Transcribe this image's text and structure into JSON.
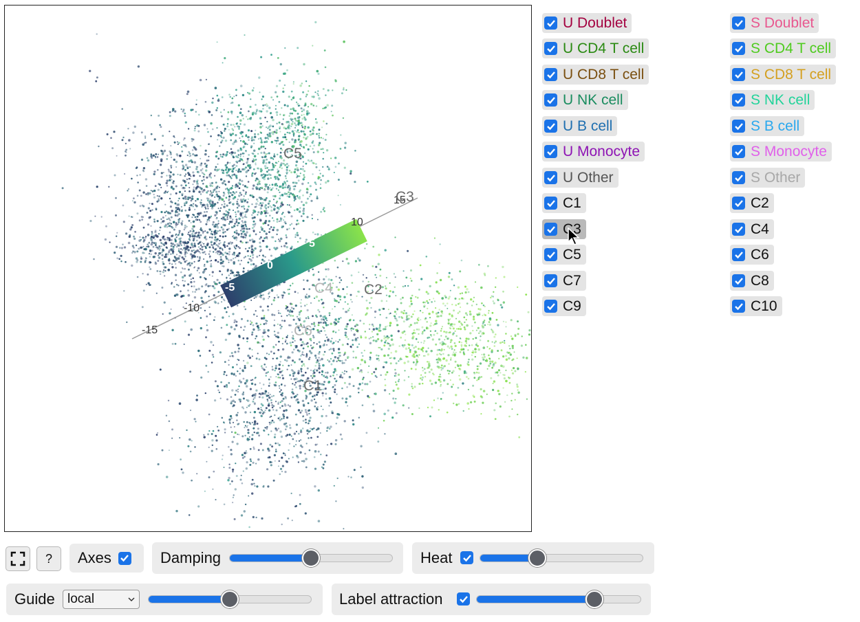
{
  "legend": {
    "left": [
      {
        "label": "U Doublet",
        "color": "#a3003f"
      },
      {
        "label": "U CD4 T cell",
        "color": "#2a8a12"
      },
      {
        "label": "U CD8 T cell",
        "color": "#7a4f10"
      },
      {
        "label": "U NK cell",
        "color": "#1a8c5f"
      },
      {
        "label": "U B cell",
        "color": "#1f6fb0"
      },
      {
        "label": "U Monocyte",
        "color": "#8e14b4"
      },
      {
        "label": "U Other",
        "color": "#555555"
      },
      {
        "label": "C1",
        "color": "#111111"
      },
      {
        "label": "C3",
        "color": "#111111"
      },
      {
        "label": "C5",
        "color": "#111111"
      },
      {
        "label": "C7",
        "color": "#111111"
      },
      {
        "label": "C9",
        "color": "#111111"
      }
    ],
    "right": [
      {
        "label": "S Doublet",
        "color": "#e8588f"
      },
      {
        "label": "S CD4 T cell",
        "color": "#4fcb1f"
      },
      {
        "label": "S CD8 T cell",
        "color": "#d4a020"
      },
      {
        "label": "S NK cell",
        "color": "#22d39a"
      },
      {
        "label": "S B cell",
        "color": "#2aa8ee"
      },
      {
        "label": "S Monocyte",
        "color": "#e060ea"
      },
      {
        "label": "S Other",
        "color": "#a8a8a8"
      },
      {
        "label": "C2",
        "color": "#111111"
      },
      {
        "label": "C4",
        "color": "#111111"
      },
      {
        "label": "C6",
        "color": "#111111"
      },
      {
        "label": "C8",
        "color": "#111111"
      },
      {
        "label": "C10",
        "color": "#111111"
      }
    ]
  },
  "plot": {
    "axis_ticks": [
      "-15",
      "-10",
      "-5",
      "0",
      "5",
      "10",
      "15"
    ],
    "cluster_labels": [
      "C1",
      "C2",
      "C3",
      "C4",
      "C5",
      "C6"
    ]
  },
  "controls": {
    "fullscreen_icon": "fullscreen-icon",
    "help_label": "?",
    "axes_label": "Axes",
    "axes_checked": true,
    "damping_label": "Damping",
    "damping_value": 0.5,
    "heat_label": "Heat",
    "heat_checked": true,
    "heat_value": 0.35,
    "guide_label": "Guide",
    "guide_value": "local",
    "guide_slider_value": 0.5,
    "label_attraction_label": "Label attraction",
    "label_attraction_checked": true,
    "label_attraction_value": 0.72
  },
  "colors": {
    "accent": "#1a73e8",
    "low": "#2d3f6b",
    "high": "#8be34a"
  }
}
